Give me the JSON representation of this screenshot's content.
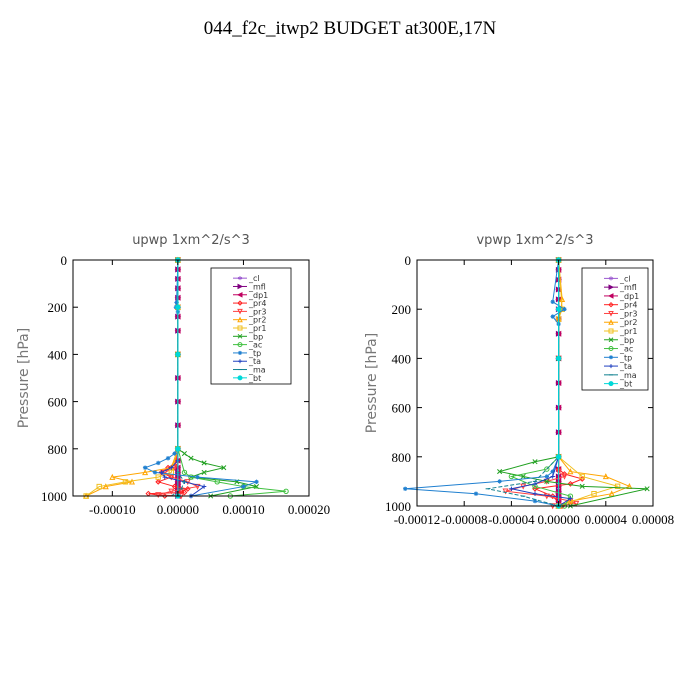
{
  "title": "044_f2c_itwp2  BUDGET at300E,17N",
  "chart_data": [
    {
      "type": "line",
      "title": "upwp   1xm^2/s^3",
      "ylabel": "Pressure [hPa]",
      "xlim": [
        -0.00016,
        0.0002
      ],
      "ylim": [
        1000,
        0
      ],
      "xticks": [
        -0.0001,
        0.0,
        0.0001,
        0.0002
      ],
      "xtick_labels": [
        "-0.00010",
        "0.00000",
        "0.00010",
        "0.00020"
      ],
      "yticks": [
        0,
        200,
        400,
        600,
        800,
        1000
      ],
      "ytick_labels": [
        "0",
        "200",
        "400",
        "600",
        "800",
        "1000"
      ],
      "legend_position": "top-right",
      "series": [
        {
          "name": "_cl",
          "color": "#9b59d0",
          "marker": "star",
          "x": [
            0,
            0,
            0,
            0,
            0,
            0,
            0,
            0,
            0,
            0,
            0,
            0,
            0,
            0,
            0,
            0,
            0,
            0,
            0,
            0,
            0,
            0,
            0
          ],
          "y": [
            0,
            40,
            80,
            120,
            160,
            200,
            240,
            300,
            400,
            500,
            600,
            700,
            800,
            850,
            880,
            900,
            920,
            940,
            950,
            960,
            970,
            980,
            1000
          ]
        },
        {
          "name": "_mfl",
          "color": "#800080",
          "marker": "tri-right",
          "x": [
            0,
            0,
            0,
            0,
            0,
            0,
            0,
            0,
            0,
            0,
            0,
            0,
            0,
            0,
            0,
            0,
            0,
            0,
            0,
            0,
            0,
            0,
            0
          ],
          "y": [
            0,
            40,
            80,
            120,
            160,
            200,
            240,
            300,
            400,
            500,
            600,
            700,
            800,
            850,
            880,
            900,
            920,
            940,
            950,
            960,
            970,
            980,
            1000
          ]
        },
        {
          "name": "_dp1",
          "color": "#c00060",
          "marker": "tri-left",
          "x": [
            0,
            0,
            0,
            0,
            0,
            0,
            0,
            0,
            0,
            0,
            0,
            0,
            0,
            0,
            0,
            0,
            0,
            0,
            0,
            0,
            0,
            0,
            0
          ],
          "y": [
            0,
            40,
            80,
            120,
            160,
            200,
            240,
            300,
            400,
            500,
            600,
            700,
            800,
            850,
            880,
            900,
            920,
            940,
            950,
            960,
            970,
            980,
            1000
          ]
        },
        {
          "name": "_pr4",
          "color": "#ff2020",
          "marker": "diamond",
          "x": [
            0,
            0,
            0,
            0,
            -3e-06,
            -1.5e-05,
            -2.5e-05,
            -1e-05,
            -3e-05,
            -5e-06,
            1.5e-05,
            5e-06,
            1e-05,
            -4.5e-05,
            -2e-05
          ],
          "y": [
            0,
            200,
            400,
            800,
            860,
            880,
            900,
            920,
            940,
            960,
            970,
            980,
            985,
            990,
            1000
          ]
        },
        {
          "name": "_pr3",
          "color": "#ff4040",
          "marker": "tri-down",
          "x": [
            0,
            0,
            0,
            0,
            -5e-06,
            -2e-05,
            -1e-05,
            1.5e-05,
            3e-05,
            -1e-05,
            -3e-05,
            5e-06
          ],
          "y": [
            0,
            200,
            400,
            800,
            880,
            900,
            920,
            940,
            960,
            980,
            995,
            1000
          ]
        },
        {
          "name": "_pr2",
          "color": "#ffa500",
          "marker": "tri-up",
          "x": [
            0,
            0,
            0,
            0,
            -1e-05,
            -5e-05,
            -0.0001,
            -7e-05,
            -0.00011,
            -0.00014
          ],
          "y": [
            0,
            200,
            400,
            800,
            880,
            900,
            920,
            940,
            960,
            1000
          ]
        },
        {
          "name": "_pr1",
          "color": "#f0c020",
          "marker": "square",
          "x": [
            0,
            0,
            0,
            0,
            -1e-05,
            -3e-05,
            -8e-05,
            -0.00012,
            -0.00014
          ],
          "y": [
            0,
            200,
            400,
            800,
            900,
            920,
            940,
            960,
            1000
          ]
        },
        {
          "name": "_bp",
          "color": "#20a020",
          "marker": "x",
          "x": [
            0,
            0,
            0,
            1e-05,
            2e-05,
            4e-05,
            7e-05,
            4e-05,
            2e-05,
            9e-05,
            0.00012,
            5e-05
          ],
          "y": [
            0,
            400,
            800,
            820,
            840,
            860,
            880,
            900,
            920,
            940,
            960,
            1000
          ]
        },
        {
          "name": "_ac",
          "color": "#40c040",
          "marker": "circle",
          "x": [
            0,
            0,
            0,
            1e-05,
            2e-05,
            6e-05,
            0.0001,
            0.000165,
            8e-05
          ],
          "y": [
            0,
            400,
            800,
            900,
            920,
            940,
            960,
            980,
            1000
          ]
        },
        {
          "name": "_tp",
          "color": "#2080d0",
          "marker": "asterisk",
          "x": [
            0,
            -2e-06,
            -3e-06,
            0,
            0,
            -5e-06,
            -1.5e-05,
            -3e-05,
            -5e-05,
            -3.5e-05,
            3e-05,
            0.00012,
            0.0001,
            2e-05
          ],
          "y": [
            0,
            180,
            200,
            220,
            800,
            820,
            840,
            860,
            880,
            900,
            920,
            940,
            960,
            1000
          ]
        },
        {
          "name": "_ta",
          "color": "#2040c0",
          "marker": "plus",
          "x": [
            0,
            0,
            0,
            0,
            -1e-05,
            -2.5e-05,
            -2e-05,
            1e-05,
            4e-05,
            2e-05
          ],
          "y": [
            0,
            400,
            800,
            850,
            880,
            900,
            920,
            940,
            960,
            1000
          ]
        },
        {
          "name": "_ma",
          "color": "#108090",
          "marker": "dash",
          "x": [
            0,
            0,
            0,
            0,
            1e-05,
            5e-06,
            -1e-05
          ],
          "y": [
            0,
            400,
            800,
            900,
            940,
            970,
            1000
          ]
        },
        {
          "name": "_bt",
          "color": "#00d8d8",
          "marker": "circle-filled",
          "x": [
            0,
            0,
            0,
            0,
            0
          ],
          "y": [
            0,
            200,
            400,
            800,
            1000
          ]
        }
      ]
    },
    {
      "type": "line",
      "title": "vpwp   1xm^2/s^3",
      "ylabel": "Pressure [hPa]",
      "xlim": [
        -0.00012,
        8e-05
      ],
      "ylim": [
        1000,
        0
      ],
      "xticks": [
        -0.00012,
        -8e-05,
        -4e-05,
        0.0,
        4e-05,
        8e-05
      ],
      "xtick_labels": [
        "-0.00012",
        "-0.00008",
        "-0.00004",
        "0.00000",
        "0.00004",
        "0.00008"
      ],
      "yticks": [
        0,
        200,
        400,
        600,
        800,
        1000
      ],
      "ytick_labels": [
        "0",
        "200",
        "400",
        "600",
        "800",
        "1000"
      ],
      "legend_position": "top-right",
      "series": [
        {
          "name": "_cl",
          "color": "#9b59d0",
          "marker": "star",
          "x": [
            0,
            0,
            0,
            0,
            0,
            0,
            0,
            0,
            0,
            0,
            0,
            0,
            0,
            0,
            0,
            0,
            0,
            0,
            0,
            0,
            0,
            0,
            0
          ],
          "y": [
            0,
            40,
            80,
            120,
            160,
            200,
            240,
            300,
            400,
            500,
            600,
            700,
            800,
            850,
            880,
            900,
            920,
            940,
            950,
            960,
            970,
            980,
            1000
          ]
        },
        {
          "name": "_mfl",
          "color": "#800080",
          "marker": "tri-right",
          "x": [
            0,
            0,
            0,
            0,
            0,
            0,
            0,
            0,
            0,
            0,
            0,
            0,
            0,
            0,
            0,
            0,
            0,
            0,
            0,
            0,
            0,
            0,
            0
          ],
          "y": [
            0,
            40,
            80,
            120,
            160,
            200,
            240,
            300,
            400,
            500,
            600,
            700,
            800,
            850,
            880,
            900,
            920,
            940,
            950,
            960,
            970,
            980,
            1000
          ]
        },
        {
          "name": "_dp1",
          "color": "#c00060",
          "marker": "tri-left",
          "x": [
            0,
            0,
            0,
            0,
            0,
            0,
            0,
            0,
            0,
            0,
            0,
            0,
            0,
            0,
            0,
            0,
            0,
            0,
            0,
            0,
            0,
            0,
            0
          ],
          "y": [
            0,
            40,
            80,
            120,
            160,
            200,
            240,
            300,
            400,
            500,
            600,
            700,
            800,
            850,
            880,
            900,
            920,
            940,
            950,
            960,
            970,
            980,
            1000
          ]
        },
        {
          "name": "_pr4",
          "color": "#ff2020",
          "marker": "diamond",
          "x": [
            0,
            0,
            0,
            0,
            5e-06,
            2e-05,
            1e-05,
            -2e-05,
            -5e-06,
            3e-06
          ],
          "y": [
            0,
            400,
            800,
            850,
            870,
            890,
            910,
            930,
            960,
            1000
          ]
        },
        {
          "name": "_pr3",
          "color": "#ff4040",
          "marker": "tri-down",
          "x": [
            0,
            0,
            0,
            0,
            5e-06,
            -1e-05,
            -3e-05,
            -4.5e-05,
            -1e-05,
            1e-05,
            1.5e-05,
            -5e-06
          ],
          "y": [
            0,
            400,
            800,
            860,
            880,
            900,
            920,
            940,
            960,
            980,
            990,
            1000
          ]
        },
        {
          "name": "_pr2",
          "color": "#ffa500",
          "marker": "tri-up",
          "x": [
            0,
            3e-06,
            2e-06,
            0,
            0,
            1e-05,
            4e-05,
            6e-05,
            4.5e-05,
            1e-05,
            0
          ],
          "y": [
            0,
            160,
            200,
            240,
            800,
            860,
            880,
            920,
            950,
            980,
            1000
          ]
        },
        {
          "name": "_pr1",
          "color": "#f0c020",
          "marker": "square",
          "x": [
            0,
            3e-06,
            0,
            0,
            2e-05,
            5e-05,
            3e-05,
            0
          ],
          "y": [
            0,
            200,
            240,
            800,
            880,
            920,
            950,
            1000
          ]
        },
        {
          "name": "_bp",
          "color": "#20a020",
          "marker": "x",
          "x": [
            0,
            0,
            0,
            -2e-05,
            -5e-05,
            -3e-05,
            -1e-05,
            2e-05,
            7.5e-05,
            1e-05
          ],
          "y": [
            0,
            400,
            800,
            820,
            860,
            880,
            900,
            920,
            930,
            1000
          ]
        },
        {
          "name": "_ac",
          "color": "#40c040",
          "marker": "circle",
          "x": [
            0,
            0,
            0,
            -1e-05,
            -4e-05,
            -2e-05,
            1e-05,
            5e-06
          ],
          "y": [
            0,
            400,
            800,
            850,
            880,
            920,
            960,
            1000
          ]
        },
        {
          "name": "_tp",
          "color": "#2080d0",
          "marker": "asterisk",
          "x": [
            0,
            -5e-06,
            5e-06,
            -5e-06,
            0,
            0,
            -5e-06,
            -1e-05,
            -5e-05,
            -0.00013,
            -7e-05,
            -2e-05,
            0
          ],
          "y": [
            0,
            170,
            200,
            230,
            260,
            800,
            860,
            880,
            900,
            930,
            950,
            980,
            1000
          ]
        },
        {
          "name": "_ta",
          "color": "#2040c0",
          "marker": "plus",
          "x": [
            0,
            0,
            0,
            -5e-06,
            -2e-05,
            -4e-05,
            -2e-05,
            1e-05,
            0
          ],
          "y": [
            0,
            400,
            800,
            880,
            910,
            930,
            950,
            970,
            1000
          ]
        },
        {
          "name": "_ma",
          "color": "#108090",
          "marker": "dash",
          "x": [
            0,
            0,
            0,
            -2e-05,
            -6e-05,
            -3e-05,
            0
          ],
          "y": [
            0,
            400,
            800,
            900,
            930,
            960,
            1000
          ]
        },
        {
          "name": "_bt",
          "color": "#00d8d8",
          "marker": "circle-filled",
          "x": [
            0,
            0,
            0,
            0,
            0
          ],
          "y": [
            0,
            200,
            400,
            800,
            1000
          ]
        }
      ]
    }
  ]
}
